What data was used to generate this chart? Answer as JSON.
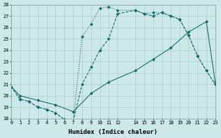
{
  "xlabel": "Humidex (Indice chaleur)",
  "xlim": [
    0,
    23
  ],
  "ylim": [
    18,
    28
  ],
  "yticks": [
    18,
    19,
    20,
    21,
    22,
    23,
    24,
    25,
    26,
    27,
    28
  ],
  "xticks": [
    0,
    1,
    2,
    3,
    4,
    5,
    6,
    7,
    8,
    9,
    10,
    11,
    12,
    14,
    15,
    16,
    17,
    18,
    19,
    20,
    21,
    22,
    23
  ],
  "bg_color": "#cce8e8",
  "line_color": "#1a6b6b",
  "grid_color": "#aacccc",
  "line1_x": [
    0,
    1,
    2,
    3,
    4,
    5,
    6,
    7,
    8,
    9,
    10,
    11,
    12,
    14,
    15,
    16,
    17,
    18,
    19,
    20,
    21,
    22,
    23
  ],
  "line1_y": [
    20.8,
    19.7,
    19.5,
    19.0,
    18.8,
    18.5,
    17.9,
    17.8,
    21.0,
    22.5,
    24.0,
    25.0,
    27.2,
    27.5,
    27.2,
    27.0,
    27.3,
    27.0,
    26.7,
    25.3,
    23.5,
    22.2,
    21.0
  ],
  "line2_x": [
    0,
    1,
    2,
    3,
    4,
    5,
    6,
    7,
    8,
    9,
    10,
    11,
    12,
    14,
    15,
    16,
    17,
    18,
    19,
    20,
    21,
    22,
    23
  ],
  "line2_y": [
    20.8,
    19.7,
    19.5,
    19.0,
    18.8,
    18.5,
    17.9,
    17.8,
    25.2,
    26.3,
    27.7,
    27.8,
    27.5,
    27.5,
    27.2,
    27.3,
    27.3,
    27.0,
    26.7,
    25.3,
    23.5,
    22.2,
    21.0
  ],
  "line3_x": [
    0,
    1,
    3,
    5,
    7,
    9,
    11,
    14,
    16,
    18,
    20,
    22,
    23
  ],
  "line3_y": [
    20.8,
    20.0,
    19.6,
    19.2,
    18.6,
    20.2,
    21.2,
    22.2,
    23.2,
    24.2,
    25.6,
    26.5,
    21.2
  ]
}
